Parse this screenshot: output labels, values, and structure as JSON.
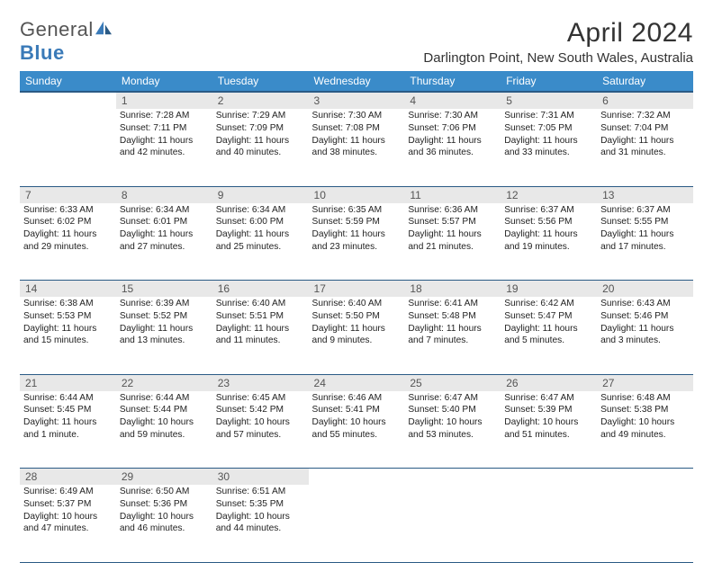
{
  "brand": {
    "name_part1": "General",
    "name_part2": "Blue"
  },
  "title": "April 2024",
  "location": "Darlington Point, New South Wales, Australia",
  "colors": {
    "header_bg": "#3a8bc9",
    "header_border": "#2a5a85",
    "daynum_bg": "#e8e8e8",
    "text": "#222222",
    "brand_blue": "#3a7ab8"
  },
  "day_headers": [
    "Sunday",
    "Monday",
    "Tuesday",
    "Wednesday",
    "Thursday",
    "Friday",
    "Saturday"
  ],
  "weeks": [
    {
      "nums": [
        "",
        "1",
        "2",
        "3",
        "4",
        "5",
        "6"
      ],
      "cells": [
        null,
        {
          "sunrise": "Sunrise: 7:28 AM",
          "sunset": "Sunset: 7:11 PM",
          "daylight": "Daylight: 11 hours and 42 minutes."
        },
        {
          "sunrise": "Sunrise: 7:29 AM",
          "sunset": "Sunset: 7:09 PM",
          "daylight": "Daylight: 11 hours and 40 minutes."
        },
        {
          "sunrise": "Sunrise: 7:30 AM",
          "sunset": "Sunset: 7:08 PM",
          "daylight": "Daylight: 11 hours and 38 minutes."
        },
        {
          "sunrise": "Sunrise: 7:30 AM",
          "sunset": "Sunset: 7:06 PM",
          "daylight": "Daylight: 11 hours and 36 minutes."
        },
        {
          "sunrise": "Sunrise: 7:31 AM",
          "sunset": "Sunset: 7:05 PM",
          "daylight": "Daylight: 11 hours and 33 minutes."
        },
        {
          "sunrise": "Sunrise: 7:32 AM",
          "sunset": "Sunset: 7:04 PM",
          "daylight": "Daylight: 11 hours and 31 minutes."
        }
      ]
    },
    {
      "nums": [
        "7",
        "8",
        "9",
        "10",
        "11",
        "12",
        "13"
      ],
      "cells": [
        {
          "sunrise": "Sunrise: 6:33 AM",
          "sunset": "Sunset: 6:02 PM",
          "daylight": "Daylight: 11 hours and 29 minutes."
        },
        {
          "sunrise": "Sunrise: 6:34 AM",
          "sunset": "Sunset: 6:01 PM",
          "daylight": "Daylight: 11 hours and 27 minutes."
        },
        {
          "sunrise": "Sunrise: 6:34 AM",
          "sunset": "Sunset: 6:00 PM",
          "daylight": "Daylight: 11 hours and 25 minutes."
        },
        {
          "sunrise": "Sunrise: 6:35 AM",
          "sunset": "Sunset: 5:59 PM",
          "daylight": "Daylight: 11 hours and 23 minutes."
        },
        {
          "sunrise": "Sunrise: 6:36 AM",
          "sunset": "Sunset: 5:57 PM",
          "daylight": "Daylight: 11 hours and 21 minutes."
        },
        {
          "sunrise": "Sunrise: 6:37 AM",
          "sunset": "Sunset: 5:56 PM",
          "daylight": "Daylight: 11 hours and 19 minutes."
        },
        {
          "sunrise": "Sunrise: 6:37 AM",
          "sunset": "Sunset: 5:55 PM",
          "daylight": "Daylight: 11 hours and 17 minutes."
        }
      ]
    },
    {
      "nums": [
        "14",
        "15",
        "16",
        "17",
        "18",
        "19",
        "20"
      ],
      "cells": [
        {
          "sunrise": "Sunrise: 6:38 AM",
          "sunset": "Sunset: 5:53 PM",
          "daylight": "Daylight: 11 hours and 15 minutes."
        },
        {
          "sunrise": "Sunrise: 6:39 AM",
          "sunset": "Sunset: 5:52 PM",
          "daylight": "Daylight: 11 hours and 13 minutes."
        },
        {
          "sunrise": "Sunrise: 6:40 AM",
          "sunset": "Sunset: 5:51 PM",
          "daylight": "Daylight: 11 hours and 11 minutes."
        },
        {
          "sunrise": "Sunrise: 6:40 AM",
          "sunset": "Sunset: 5:50 PM",
          "daylight": "Daylight: 11 hours and 9 minutes."
        },
        {
          "sunrise": "Sunrise: 6:41 AM",
          "sunset": "Sunset: 5:48 PM",
          "daylight": "Daylight: 11 hours and 7 minutes."
        },
        {
          "sunrise": "Sunrise: 6:42 AM",
          "sunset": "Sunset: 5:47 PM",
          "daylight": "Daylight: 11 hours and 5 minutes."
        },
        {
          "sunrise": "Sunrise: 6:43 AM",
          "sunset": "Sunset: 5:46 PM",
          "daylight": "Daylight: 11 hours and 3 minutes."
        }
      ]
    },
    {
      "nums": [
        "21",
        "22",
        "23",
        "24",
        "25",
        "26",
        "27"
      ],
      "cells": [
        {
          "sunrise": "Sunrise: 6:44 AM",
          "sunset": "Sunset: 5:45 PM",
          "daylight": "Daylight: 11 hours and 1 minute."
        },
        {
          "sunrise": "Sunrise: 6:44 AM",
          "sunset": "Sunset: 5:44 PM",
          "daylight": "Daylight: 10 hours and 59 minutes."
        },
        {
          "sunrise": "Sunrise: 6:45 AM",
          "sunset": "Sunset: 5:42 PM",
          "daylight": "Daylight: 10 hours and 57 minutes."
        },
        {
          "sunrise": "Sunrise: 6:46 AM",
          "sunset": "Sunset: 5:41 PM",
          "daylight": "Daylight: 10 hours and 55 minutes."
        },
        {
          "sunrise": "Sunrise: 6:47 AM",
          "sunset": "Sunset: 5:40 PM",
          "daylight": "Daylight: 10 hours and 53 minutes."
        },
        {
          "sunrise": "Sunrise: 6:47 AM",
          "sunset": "Sunset: 5:39 PM",
          "daylight": "Daylight: 10 hours and 51 minutes."
        },
        {
          "sunrise": "Sunrise: 6:48 AM",
          "sunset": "Sunset: 5:38 PM",
          "daylight": "Daylight: 10 hours and 49 minutes."
        }
      ]
    },
    {
      "nums": [
        "28",
        "29",
        "30",
        "",
        "",
        "",
        ""
      ],
      "cells": [
        {
          "sunrise": "Sunrise: 6:49 AM",
          "sunset": "Sunset: 5:37 PM",
          "daylight": "Daylight: 10 hours and 47 minutes."
        },
        {
          "sunrise": "Sunrise: 6:50 AM",
          "sunset": "Sunset: 5:36 PM",
          "daylight": "Daylight: 10 hours and 46 minutes."
        },
        {
          "sunrise": "Sunrise: 6:51 AM",
          "sunset": "Sunset: 5:35 PM",
          "daylight": "Daylight: 10 hours and 44 minutes."
        },
        null,
        null,
        null,
        null
      ]
    }
  ]
}
